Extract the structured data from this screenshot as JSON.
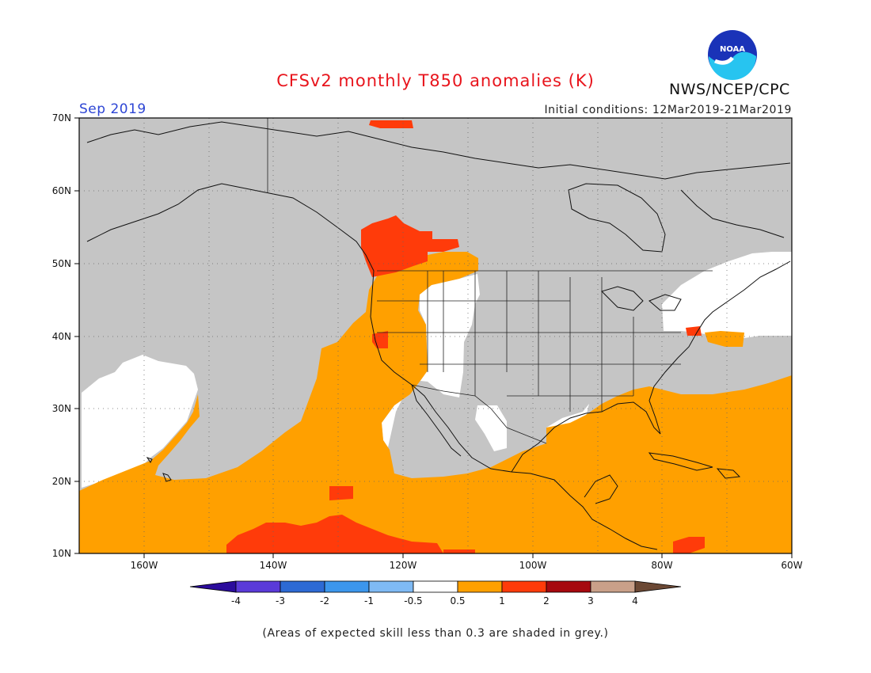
{
  "title": "CFSv2 monthly T850 anomalies (K)",
  "agency": "NWS/NCEP/CPC",
  "logo_text": "NOAA",
  "period": "Sep 2019",
  "initial_conditions": "Initial conditions: 12Mar2019-21Mar2019",
  "lat_labels": [
    "70N",
    "60N",
    "50N",
    "40N",
    "30N",
    "20N",
    "10N"
  ],
  "lon_labels": [
    "160W",
    "140W",
    "120W",
    "100W",
    "80W",
    "60W"
  ],
  "colorbar": {
    "colors": [
      "#2b0c9c",
      "#5a3ad8",
      "#2d6ad4",
      "#3c96ec",
      "#7fbaf4",
      "#ffffff",
      "#ffa000",
      "#ff3b0a",
      "#a6090f",
      "#c9a089",
      "#6b4834"
    ],
    "labels": [
      "-4",
      "-3",
      "-2",
      "-1",
      "-0.5",
      "0.5",
      "1",
      "2",
      "3",
      "4"
    ]
  },
  "legend_colors": {
    "grey": "#c5c5c5",
    "orange": "#ffa000",
    "red": "#ff3b0a",
    "white": "#ffffff"
  },
  "footnote": "(Areas of expected skill less than 0.3 are shaded in grey.)"
}
